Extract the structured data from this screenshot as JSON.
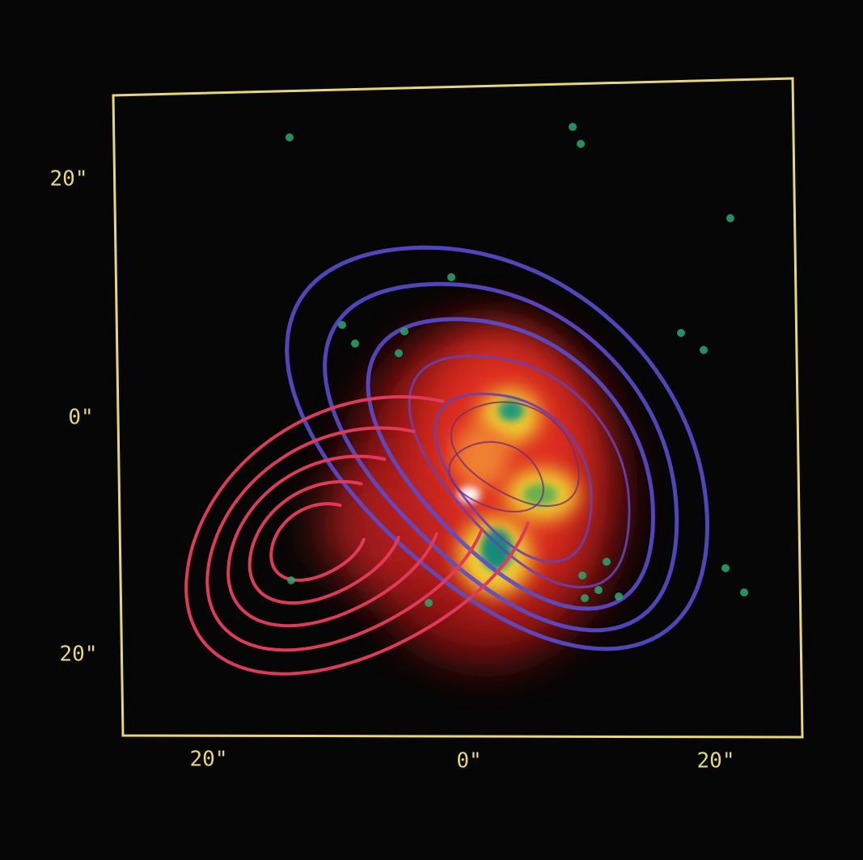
{
  "y_axis": {
    "labels": [
      "20\"",
      "0\"",
      "20\""
    ]
  },
  "x_axis": {
    "labels": [
      "20\"",
      "0\"",
      "20\""
    ]
  }
}
